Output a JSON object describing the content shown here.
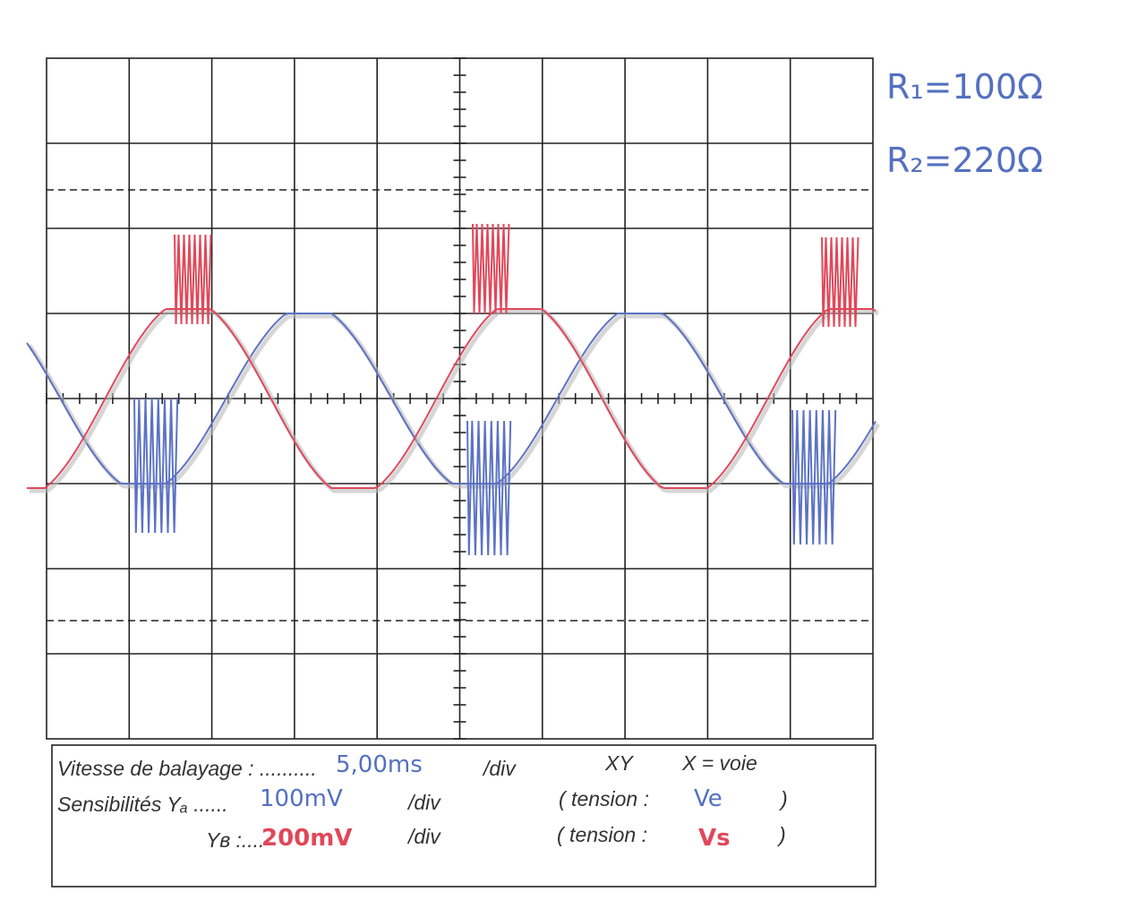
{
  "resistors": [
    "R₁=100Ω",
    "R₂=220Ω"
  ],
  "settings": {
    "sweep_label": "Vitesse de balayage : ..........",
    "sweep_value": "5,00ms",
    "sweep_unit": "/div",
    "xy_label": "XY",
    "x_label": "X = voie",
    "ya_label": "Sensibilités Yₐ ......",
    "ya_value": "100mV",
    "ya_unit": "/div",
    "ya_tension_open": "( tension :",
    "ya_tension_value": "Ve",
    "ya_tension_close": ")",
    "yb_label": "Yʙ :....",
    "yb_value": "200mV",
    "yb_unit": "/div",
    "yb_tension_open": "( tension :",
    "yb_tension_value": "Vs",
    "yb_tension_close": ")"
  }
}
